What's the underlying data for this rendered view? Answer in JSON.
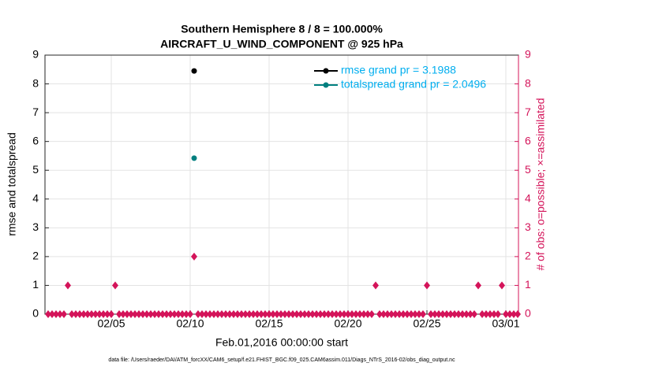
{
  "chart_data": {
    "type": "line",
    "title": "Southern Hemisphere 8 / 8 = 100.000%",
    "subtitle": "AIRCRAFT_U_WIND_COMPONENT @ 925 hPa",
    "x_label": "Feb.01,2016 00:00:00 start",
    "y_label": "rmse and totalspread",
    "y2_label": "# of obs: o=possible; ×=assimilated",
    "footnote": "data file: /Users/raeder/DAI/ATM_forcXX/CAM6_setup/f.e21.FHIST_BGC.f09_025.CAM6assim.011/Diags_NTrS_2016-02/obs_diag_output.nc",
    "xlim": [
      0.8,
      30.8
    ],
    "xticks": [
      {
        "value": 5,
        "label": "02/05"
      },
      {
        "value": 10,
        "label": "02/10"
      },
      {
        "value": 15,
        "label": "02/15"
      },
      {
        "value": 20,
        "label": "02/20"
      },
      {
        "value": 25,
        "label": "02/25"
      },
      {
        "value": 30,
        "label": "03/01"
      }
    ],
    "ylim": [
      0,
      9
    ],
    "yticks": [
      0,
      1,
      2,
      3,
      4,
      5,
      6,
      7,
      8,
      9
    ],
    "y2lim": [
      0,
      9
    ],
    "y2ticks": [
      0,
      1,
      2,
      3,
      4,
      5,
      6,
      7,
      8,
      9
    ],
    "grid": true,
    "legend": "upper right",
    "series": [
      {
        "name": "rmse grand pr = 3.1988",
        "color": "#000000",
        "marker": "circle",
        "x": [
          10.25
        ],
        "values": [
          8.45
        ]
      },
      {
        "name": "totalspread grand pr = 2.0496",
        "color": "#007f7f",
        "marker": "circle",
        "x": [
          10.25
        ],
        "values": [
          5.42
        ]
      },
      {
        "color": "#d4145a",
        "marker": "diamond",
        "axis": "y2",
        "x": [
          1,
          1.25,
          1.5,
          1.75,
          2,
          2.25,
          2.5,
          2.75,
          3,
          3.25,
          3.5,
          3.75,
          4,
          4.25,
          4.5,
          4.75,
          5,
          5.25,
          5.5,
          5.75,
          6,
          6.25,
          6.5,
          6.75,
          7,
          7.25,
          7.5,
          7.75,
          8,
          8.25,
          8.5,
          8.75,
          9,
          9.25,
          9.5,
          9.75,
          10,
          10.25,
          10.5,
          10.75,
          11,
          11.25,
          11.5,
          11.75,
          12,
          12.25,
          12.5,
          12.75,
          13,
          13.25,
          13.5,
          13.75,
          14,
          14.25,
          14.5,
          14.75,
          15,
          15.25,
          15.5,
          15.75,
          16,
          16.25,
          16.5,
          16.75,
          17,
          17.25,
          17.5,
          17.75,
          18,
          18.25,
          18.5,
          18.75,
          19,
          19.25,
          19.5,
          19.75,
          20,
          20.25,
          20.5,
          20.75,
          21,
          21.25,
          21.5,
          21.75,
          22,
          22.25,
          22.5,
          22.75,
          23,
          23.25,
          23.5,
          23.75,
          24,
          24.25,
          24.5,
          24.75,
          25,
          25.25,
          25.5,
          25.75,
          26,
          26.25,
          26.5,
          26.75,
          27,
          27.25,
          27.5,
          27.75,
          28,
          28.25,
          28.5,
          28.75,
          29,
          29.25,
          29.5,
          29.75,
          30,
          30.25,
          30.5,
          30.75
        ],
        "values": [
          0,
          0,
          0,
          0,
          0,
          1,
          0,
          0,
          0,
          0,
          0,
          0,
          0,
          0,
          0,
          0,
          0,
          1,
          0,
          0,
          0,
          0,
          0,
          0,
          0,
          0,
          0,
          0,
          0,
          0,
          0,
          0,
          0,
          0,
          0,
          0,
          0,
          2,
          0,
          0,
          0,
          0,
          0,
          0,
          0,
          0,
          0,
          0,
          0,
          0,
          0,
          0,
          0,
          0,
          0,
          0,
          0,
          0,
          0,
          0,
          0,
          0,
          0,
          0,
          0,
          0,
          0,
          0,
          0,
          0,
          0,
          0,
          0,
          0,
          0,
          0,
          0,
          0,
          0,
          0,
          0,
          0,
          0,
          1,
          0,
          0,
          0,
          0,
          0,
          0,
          0,
          0,
          0,
          0,
          0,
          0,
          1,
          0,
          0,
          0,
          0,
          0,
          0,
          0,
          0,
          0,
          0,
          0,
          0,
          1,
          0,
          0,
          0,
          0,
          0,
          1,
          0,
          0,
          0,
          0
        ]
      }
    ]
  }
}
